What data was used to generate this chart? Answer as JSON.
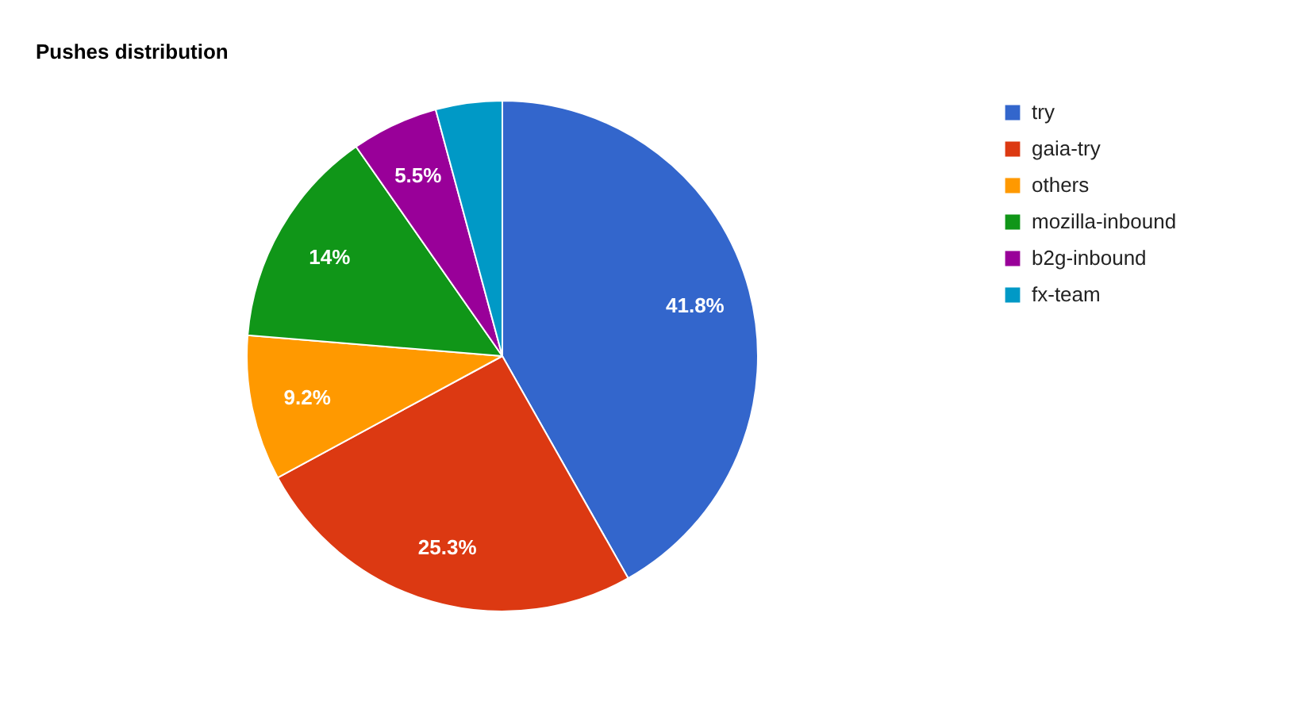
{
  "chart_data": {
    "type": "pie",
    "title": "Pushes distribution",
    "categories": [
      "try",
      "gaia-try",
      "others",
      "mozilla-inbound",
      "b2g-inbound",
      "fx-team"
    ],
    "values": [
      41.8,
      25.3,
      9.2,
      14,
      5.5,
      4.2
    ],
    "value_labels": [
      "41.8%",
      "25.3%",
      "9.2%",
      "14%",
      "5.5%",
      null
    ],
    "colors": [
      "#3366cc",
      "#dc3912",
      "#ff9900",
      "#109618",
      "#990099",
      "#0099c6"
    ],
    "legend": "top right"
  }
}
